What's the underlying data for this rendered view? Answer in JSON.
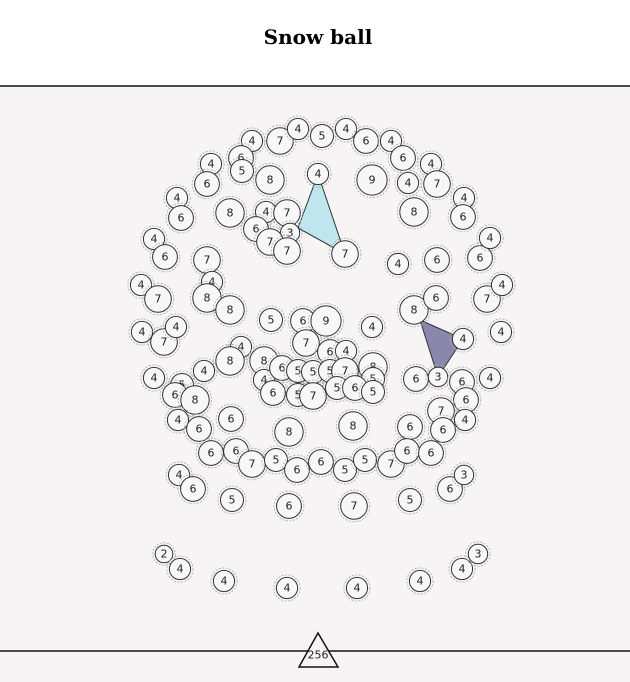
{
  "header": {
    "title": "Snow ball"
  },
  "balls": [
    4,
    7,
    4,
    5,
    4,
    6,
    4,
    6,
    4,
    5,
    8,
    6,
    4,
    9,
    6,
    4,
    4,
    7,
    4,
    6,
    8,
    4,
    7,
    6,
    3,
    7,
    7,
    7,
    8,
    4,
    6,
    4,
    6,
    7,
    4,
    8,
    8,
    4,
    6,
    6,
    4,
    4,
    7,
    7,
    4,
    4,
    7,
    4,
    5,
    6,
    9,
    7,
    4,
    8,
    6,
    4,
    4,
    4,
    8,
    8,
    6,
    4,
    4,
    4,
    5,
    6,
    8,
    4,
    6,
    5,
    5,
    5,
    7,
    8,
    5,
    6,
    5,
    7,
    5,
    6,
    5,
    6,
    3,
    6,
    4,
    6,
    7,
    4,
    6,
    6,
    4,
    6,
    6,
    8,
    8,
    6,
    6,
    7,
    5,
    6,
    6,
    5,
    5,
    7,
    6,
    6,
    4,
    6,
    5,
    6,
    7,
    5,
    6,
    3,
    2,
    4,
    4,
    4,
    4,
    4,
    4,
    3
  ],
  "counter": "256"
}
